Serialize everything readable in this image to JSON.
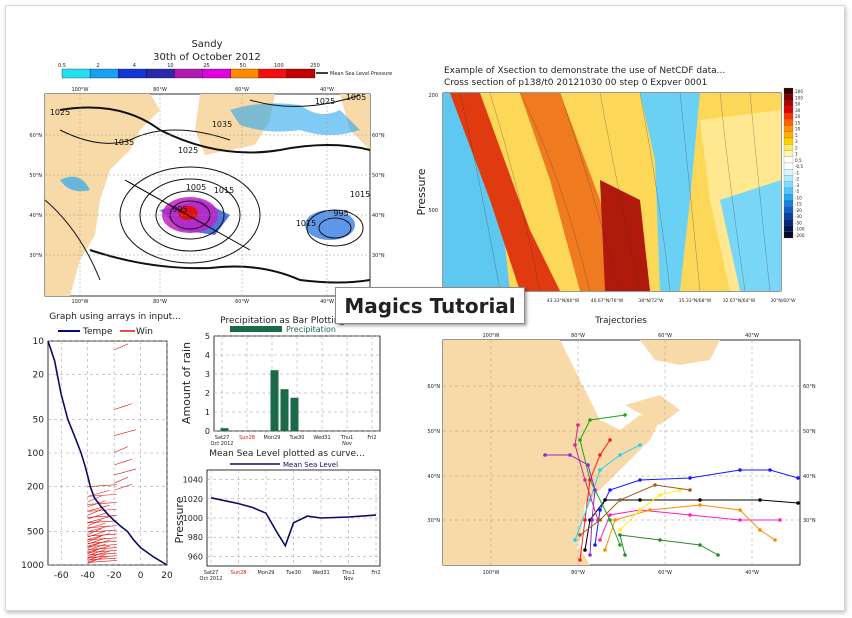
{
  "tutorial_title": "Magics Tutorial",
  "panel_map": {
    "title1": "Sandy",
    "title2": "30th of October 2012",
    "legend_labels": [
      "0.5",
      "2",
      "4",
      "10",
      "25",
      "50",
      "100",
      "250"
    ],
    "legend_colors": [
      "#23e0f0",
      "#1aa0f0",
      "#1336d6",
      "#2a2aa8",
      "#b01ab0",
      "#e000e0",
      "#ff8a00",
      "#f01010",
      "#c20000"
    ],
    "legend_title": "Mean Sea Level Pressure",
    "lon_labels": [
      "100°W",
      "80°W",
      "60°W",
      "40°W"
    ],
    "lat_labels": [
      "60°N",
      "50°N",
      "40°N",
      "30°N"
    ],
    "contour_labels": [
      "1025",
      "1035",
      "1025",
      "1035",
      "1015",
      "1005",
      "995",
      "1015",
      "1025",
      "1005",
      "995",
      "1015"
    ]
  },
  "panel_xsection": {
    "title1": "Example of Xsection to demonstrate the use of NetCDF data...",
    "title2": "Cross section of p138/t0 20121030 00 step 0 Expver 0001",
    "ylabel": "Pressure",
    "ytick_top": "200",
    "ytick_mid": "500",
    "x_labels": [
      "43.33°N/80°W",
      "40.67°N/76°W",
      "38°N/72°W",
      "35.33°N/68°W",
      "32.67°N/64°W",
      "30°N/60°W"
    ],
    "colorbar_labels": [
      "200",
      "100",
      "50",
      "30",
      "20",
      "15",
      "10",
      "5",
      "3",
      "2",
      "1",
      "0.5",
      "-0.5",
      "-1",
      "-2",
      "-3",
      "-5",
      "-10",
      "-15",
      "-20",
      "-30",
      "-50",
      "-100",
      "-200"
    ]
  },
  "panel_trajectories": {
    "title": "Trajectories",
    "lon_labels": [
      "100°W",
      "80°W",
      "60°W",
      "40°W"
    ],
    "lat_labels": [
      "60°N",
      "50°N",
      "40°N",
      "30°N"
    ]
  },
  "chart_data": [
    {
      "type": "line",
      "title": "Graph using arrays in input...",
      "legend": [
        "Tempe",
        "Win"
      ],
      "x_ticks": [
        "-60",
        "-40",
        "-20",
        "0",
        "20"
      ],
      "y_ticks": [
        "10",
        "20",
        "50",
        "100",
        "200",
        "500",
        "1000"
      ],
      "ylim": [
        1000,
        10
      ],
      "y_scale": "log",
      "xlim": [
        -70,
        20
      ],
      "series": [
        {
          "name": "Tempe",
          "x": [
            -70,
            -65,
            -63,
            -60,
            -55,
            -50,
            -45,
            -42,
            -40,
            -38,
            -35,
            -30,
            -25,
            -20,
            -15,
            -10,
            -5,
            0,
            10,
            20
          ],
          "y": [
            10,
            15,
            20,
            30,
            50,
            70,
            100,
            130,
            160,
            200,
            250,
            300,
            350,
            400,
            450,
            500,
            600,
            700,
            850,
            1000
          ]
        }
      ]
    },
    {
      "type": "bar",
      "title": "Precipitation as Bar Plotting...",
      "legend": "Precipitation",
      "ylabel": "Amount of rain",
      "categories": [
        "Sat27",
        "Sun28",
        "Mon29",
        "Tue30",
        "Wed31",
        "Thu1",
        "Fri2"
      ],
      "category_sub": [
        "Oct 2012",
        "",
        "",
        "",
        "",
        "Nov",
        ""
      ],
      "y_ticks": [
        "0",
        "1",
        "2",
        "3",
        "4",
        "5"
      ],
      "ylim": [
        0,
        5
      ],
      "bars": [
        {
          "x": 0.1,
          "value": 0.15
        },
        {
          "x": 2.1,
          "value": 3.2
        },
        {
          "x": 2.5,
          "value": 2.2
        },
        {
          "x": 2.9,
          "value": 1.75
        }
      ]
    },
    {
      "type": "line",
      "title": "Mean Sea Level plotted as curve...",
      "legend": "Mean Sea Level",
      "ylabel": "Pressure",
      "categories": [
        "Sat27",
        "Sun28",
        "Mon29",
        "Tue30",
        "Wed31",
        "Thu1",
        "Fri2"
      ],
      "category_sub": [
        "Oct 2012",
        "",
        "",
        "",
        "",
        "Nov",
        ""
      ],
      "y_ticks": [
        "960",
        "980",
        "1000",
        "1020",
        "1040"
      ],
      "ylim": [
        950,
        1050
      ],
      "x": [
        0,
        0.5,
        1,
        1.5,
        2,
        2.4,
        2.7,
        3,
        3.5,
        4,
        5,
        6
      ],
      "values": [
        1021,
        1018,
        1015,
        1011,
        1005,
        985,
        971,
        995,
        1002,
        1000,
        1001,
        1003
      ]
    }
  ]
}
